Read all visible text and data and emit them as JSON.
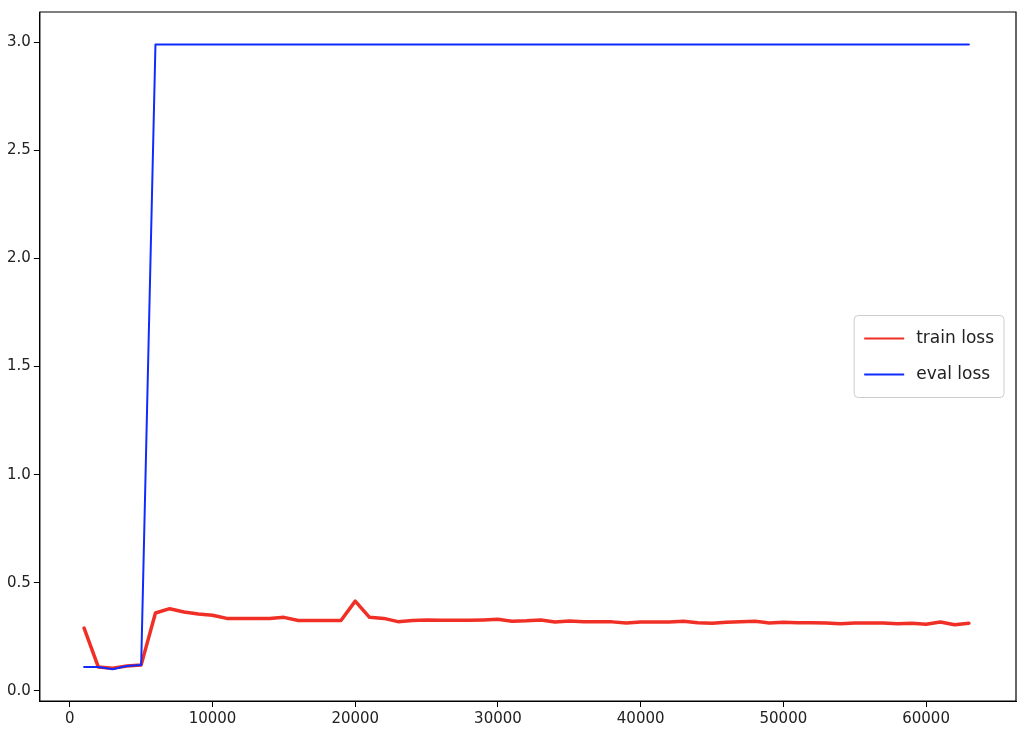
{
  "chart_data": {
    "type": "line",
    "x": [
      1000,
      2000,
      3000,
      4000,
      5000,
      6000,
      7000,
      8000,
      9000,
      10000,
      11000,
      12000,
      13000,
      14000,
      15000,
      16000,
      17000,
      18000,
      19000,
      20000,
      21000,
      22000,
      23000,
      24000,
      25000,
      26000,
      27000,
      28000,
      29000,
      30000,
      31000,
      32000,
      33000,
      34000,
      35000,
      36000,
      37000,
      38000,
      39000,
      40000,
      41000,
      42000,
      43000,
      44000,
      45000,
      46000,
      47000,
      48000,
      49000,
      50000,
      51000,
      52000,
      53000,
      54000,
      55000,
      56000,
      57000,
      58000,
      59000,
      60000,
      61000,
      62000,
      63000
    ],
    "series": [
      {
        "name": "train loss",
        "color": "#f03026",
        "values": [
          0.29,
          0.11,
          0.105,
          0.115,
          0.12,
          0.36,
          0.38,
          0.365,
          0.355,
          0.35,
          0.335,
          0.335,
          0.335,
          0.335,
          0.34,
          0.325,
          0.325,
          0.325,
          0.325,
          0.415,
          0.34,
          0.335,
          0.32,
          0.325,
          0.328,
          0.327,
          0.326,
          0.326,
          0.328,
          0.331,
          0.322,
          0.324,
          0.328,
          0.318,
          0.323,
          0.32,
          0.319,
          0.319,
          0.314,
          0.318,
          0.318,
          0.318,
          0.322,
          0.315,
          0.313,
          0.317,
          0.32,
          0.322,
          0.314,
          0.317,
          0.315,
          0.315,
          0.314,
          0.31,
          0.314,
          0.314,
          0.314,
          0.31,
          0.313,
          0.308,
          0.318,
          0.306,
          0.313
        ]
      },
      {
        "name": "eval loss",
        "color": "#0f2bff",
        "values": [
          0.11,
          0.11,
          0.1,
          0.115,
          0.12,
          2.99,
          2.99,
          2.99,
          2.99,
          2.99,
          2.99,
          2.99,
          2.99,
          2.99,
          2.99,
          2.99,
          2.99,
          2.99,
          2.99,
          2.99,
          2.99,
          2.99,
          2.99,
          2.99,
          2.99,
          2.99,
          2.99,
          2.99,
          2.99,
          2.99,
          2.99,
          2.99,
          2.99,
          2.99,
          2.99,
          2.99,
          2.99,
          2.99,
          2.99,
          2.99,
          2.99,
          2.99,
          2.99,
          2.99,
          2.99,
          2.99,
          2.99,
          2.99,
          2.99,
          2.99,
          2.99,
          2.99,
          2.99,
          2.99,
          2.99,
          2.99,
          2.99,
          2.99,
          2.99,
          2.99,
          2.99,
          2.99,
          2.99
        ]
      }
    ],
    "xlim": [
      -2100,
      66300
    ],
    "xticks": [
      0,
      10000,
      20000,
      30000,
      40000,
      50000,
      60000
    ],
    "ylim": [
      -0.047,
      3.14
    ],
    "yticks": [
      {
        "value": 0,
        "label": "0.0"
      },
      {
        "value": 0.5,
        "label": "0.5"
      },
      {
        "value": 1,
        "label": "1.0"
      },
      {
        "value": 1.5,
        "label": "1.5"
      },
      {
        "value": 2,
        "label": "2.0"
      },
      {
        "value": 2.5,
        "label": "2.5"
      },
      {
        "value": 3,
        "label": "3.0"
      }
    ],
    "legend": "right",
    "grid": false,
    "marker": "none",
    "line_style": "solid"
  }
}
